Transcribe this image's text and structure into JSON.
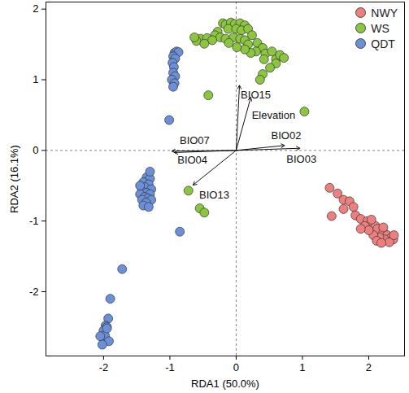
{
  "chart_data": {
    "type": "scatter",
    "x_label": "RDA1 (50.0%)",
    "y_label": "RDA2 (16.1%)",
    "xlim": [
      -2.87,
      2.54
    ],
    "ylim": [
      -2.91,
      2.1
    ],
    "xticks": [
      -2,
      -1,
      0,
      1,
      2
    ],
    "yticks": [
      -2,
      -1,
      0,
      1,
      2
    ],
    "legend": "top-right",
    "origin": [
      0,
      0
    ],
    "series": [
      {
        "name": "NWY",
        "color": "#EE7F7F",
        "x": [
          1.41,
          1.53,
          1.62,
          1.71,
          1.77,
          1.62,
          1.8,
          1.44,
          1.88,
          1.98,
          2.04,
          2.1,
          2.13,
          2.22,
          2.28,
          2.34,
          2.37,
          2.24,
          2.16,
          2.07,
          2.12,
          2.31,
          2.38,
          2.22,
          1.94,
          2.0,
          1.88,
          2.19,
          2.04
        ],
        "y": [
          -0.53,
          -0.61,
          -0.7,
          -0.72,
          -0.8,
          -0.83,
          -0.92,
          -0.93,
          -0.97,
          -1.0,
          -1.05,
          -1.07,
          -1.11,
          -1.16,
          -1.2,
          -1.23,
          -1.26,
          -1.26,
          -1.23,
          -1.2,
          -1.28,
          -1.3,
          -1.2,
          -1.09,
          -1.07,
          -1.13,
          -1.11,
          -1.31,
          -0.98
        ]
      },
      {
        "name": "WS",
        "color": "#8CC540",
        "x": [
          -0.2,
          -0.16,
          -0.08,
          -0.02,
          0.06,
          0.13,
          -0.12,
          0.0,
          0.08,
          0.18,
          -0.28,
          -0.32,
          -0.24,
          -0.16,
          -0.04,
          0.06,
          0.13,
          0.24,
          -0.54,
          -0.44,
          -0.36,
          -0.6,
          -0.48,
          0.18,
          0.32,
          0.4,
          0.3,
          0.44,
          0.54,
          0.6,
          0.66,
          0.72,
          0.6,
          0.42,
          0.51,
          0.4,
          0.36,
          0.22,
          0.13,
          -0.63,
          0.01,
          -0.11,
          -0.42,
          1.03,
          -0.72,
          -0.55,
          -0.48
        ],
        "y": [
          1.8,
          1.78,
          1.81,
          1.79,
          1.8,
          1.77,
          1.72,
          1.72,
          1.7,
          1.72,
          1.68,
          1.63,
          1.6,
          1.58,
          1.6,
          1.58,
          1.56,
          1.63,
          1.58,
          1.59,
          1.56,
          1.55,
          1.51,
          1.5,
          1.52,
          1.45,
          1.4,
          1.37,
          1.4,
          1.29,
          1.35,
          1.31,
          1.23,
          1.29,
          1.17,
          1.08,
          1.0,
          1.38,
          1.43,
          1.6,
          1.46,
          1.52,
          0.78,
          0.55,
          -0.57,
          -0.82,
          -0.88
        ]
      },
      {
        "name": "QDT",
        "color": "#6B8FD8",
        "x": [
          -0.93,
          -0.9,
          -0.87,
          -0.95,
          -0.92,
          -0.96,
          -0.94,
          -0.95,
          -0.92,
          -0.97,
          -0.93,
          -0.95,
          -1.01,
          -1.35,
          -1.3,
          -1.4,
          -1.32,
          -1.38,
          -1.28,
          -1.42,
          -1.35,
          -1.3,
          -1.45,
          -1.38,
          -1.33,
          -1.42,
          -1.28,
          -1.36,
          -1.4,
          -1.32,
          -1.45,
          -1.3,
          -0.85,
          -1.72,
          -1.9,
          -1.93,
          -1.97,
          -1.95,
          -2.0,
          -1.98,
          -2.05,
          -1.92,
          -2.02,
          -1.95
        ],
        "y": [
          1.38,
          1.4,
          1.39,
          1.33,
          1.3,
          1.24,
          1.18,
          1.1,
          1.05,
          1.0,
          0.95,
          0.9,
          0.43,
          -0.38,
          -0.4,
          -0.45,
          -0.48,
          -0.52,
          -0.55,
          -0.58,
          -0.6,
          -0.62,
          -0.62,
          -0.66,
          -0.68,
          -0.7,
          -0.7,
          -0.74,
          -0.78,
          -0.8,
          -0.5,
          -0.3,
          -1.15,
          -1.68,
          -2.1,
          -2.38,
          -2.48,
          -2.5,
          -2.55,
          -2.62,
          -2.63,
          -2.7,
          -2.75,
          -2.52
        ]
      }
    ],
    "arrows": [
      {
        "label": "BIO15",
        "x": 0.05,
        "y": 0.92
      },
      {
        "label": "Elevation",
        "x": 0.22,
        "y": 0.75
      },
      {
        "label": "BIO02",
        "x": 0.73,
        "y": 0.07
      },
      {
        "label": "BIO03",
        "x": 0.96,
        "y": 0.03
      },
      {
        "label": "BIO07",
        "x": -0.97,
        "y": -0.01
      },
      {
        "label": "BIO04",
        "x": -0.93,
        "y": -0.03
      },
      {
        "label": "BIO13",
        "x": -0.65,
        "y": -0.49
      }
    ]
  }
}
